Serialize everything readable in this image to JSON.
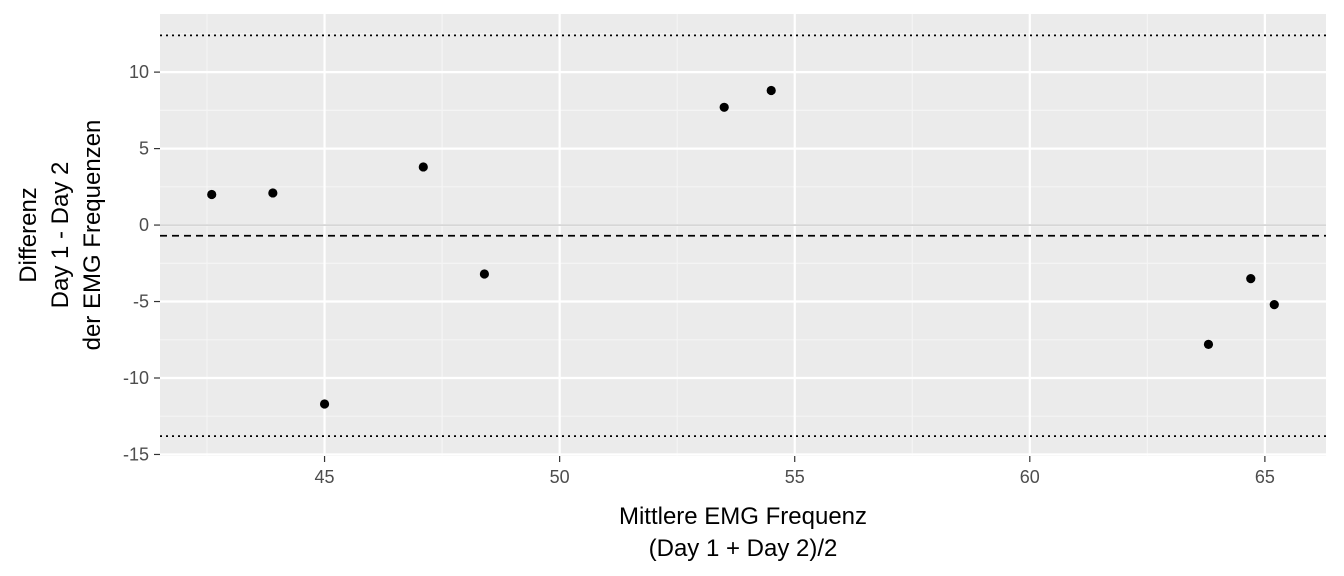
{
  "chart_data": {
    "type": "scatter",
    "title": "",
    "xlabel": [
      "Mittlere EMG Frequenz",
      "(Day 1 + Day 2)/2"
    ],
    "ylabel": [
      "Differenz",
      "Day 1 - Day 2",
      "der EMG Frequenzen"
    ],
    "xlim": [
      41.5,
      66.3
    ],
    "ylim": [
      -15.1,
      13.8
    ],
    "x_ticks": [
      45,
      50,
      55,
      60,
      65
    ],
    "x_tick_labels": [
      "45",
      "50",
      "55",
      "60",
      "65"
    ],
    "y_ticks": [
      -15,
      -10,
      -5,
      0,
      5,
      10
    ],
    "y_tick_labels": [
      "-15",
      "-10",
      "-5",
      "0",
      "5",
      "10"
    ],
    "grid": true,
    "points": [
      {
        "x": 42.6,
        "y": 2.0
      },
      {
        "x": 43.9,
        "y": 2.1
      },
      {
        "x": 45.0,
        "y": -11.7
      },
      {
        "x": 47.1,
        "y": 3.8
      },
      {
        "x": 48.4,
        "y": -3.2
      },
      {
        "x": 53.5,
        "y": 7.7
      },
      {
        "x": 54.5,
        "y": 8.8
      },
      {
        "x": 63.8,
        "y": -7.8
      },
      {
        "x": 64.7,
        "y": -3.5
      },
      {
        "x": 65.2,
        "y": -5.2
      }
    ],
    "reference_lines": [
      {
        "name": "zero",
        "y": 0,
        "style": "solid",
        "color": "#bdbdbd"
      },
      {
        "name": "mean-difference",
        "y": -0.7,
        "style": "dashed",
        "color": "#000000"
      },
      {
        "name": "upper-limit",
        "y": 12.4,
        "style": "dotted",
        "color": "#000000"
      },
      {
        "name": "lower-limit",
        "y": -13.8,
        "style": "dotted",
        "color": "#000000"
      }
    ],
    "colors": {
      "panel_background": "#ebebeb",
      "grid_major": "#ffffff",
      "grid_minor": "#f5f5f5",
      "points": "#000000"
    }
  }
}
